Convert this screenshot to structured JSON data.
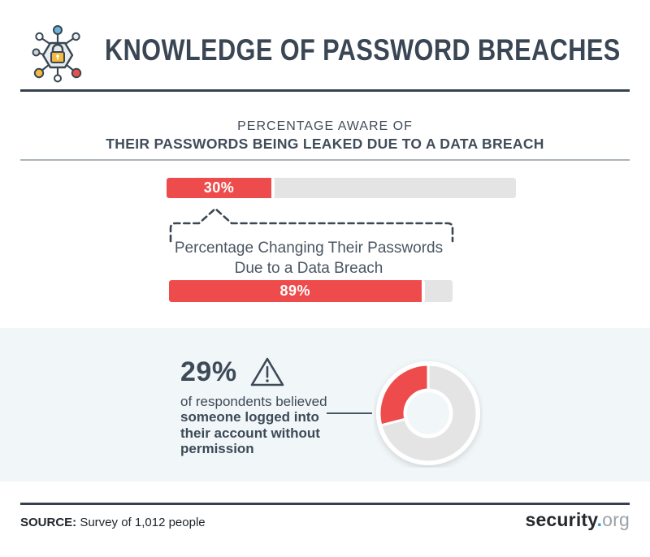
{
  "header": {
    "icon": "network-security-lock-icon",
    "title": "KNOWLEDGE OF PASSWORD BREACHES"
  },
  "awareness": {
    "heading_line1": "PERCENTAGE AWARE OF",
    "heading_line2": "THEIR PASSWORDS BEING LEAKED DUE TO A DATA BREACH"
  },
  "callout": {
    "line1": "Percentage Changing Their Passwords",
    "line2": "Due to a Data Breach"
  },
  "stat": {
    "value": "29%",
    "icon": "warning-triangle-icon",
    "intro": "of respondents believed",
    "bold_lines": [
      "someone logged into",
      "their account without",
      "permission"
    ]
  },
  "footer": {
    "source_label": "SOURCE:",
    "source_text": " Survey of 1,012 people",
    "logo_part1": "security",
    "logo_dot": ".",
    "logo_part2": "org"
  },
  "colors": {
    "accent_red": "#ee4c4c",
    "track_gray": "#e4e4e5",
    "navy": "#3a4654",
    "section_bg": "#f1f6f9",
    "logo_blue": "#2f9cd8"
  },
  "chart_data": [
    {
      "type": "bar",
      "id": "aware-bar",
      "title": "Percentage aware of their passwords being leaked due to a data breach",
      "label": "30%",
      "value": 30,
      "max": 100,
      "fill": "#ee4c4c",
      "track": "#e4e4e5",
      "orientation": "horizontal"
    },
    {
      "type": "bar",
      "id": "changed-bar",
      "title": "Percentage changing their passwords due to a data breach",
      "label": "89%",
      "value": 89,
      "max": 100,
      "fill": "#ee4c4c",
      "track": "#e4e4e5",
      "orientation": "horizontal"
    },
    {
      "type": "pie",
      "id": "unauthorized-donut",
      "donut": true,
      "start": "top",
      "direction": "counterclockwise",
      "series": [
        {
          "name": "Believed someone logged into their account without permission",
          "value": 29,
          "color": "#ee4c4c"
        },
        {
          "name": "Other respondents",
          "value": 71,
          "color": "#e4e4e5"
        }
      ]
    }
  ]
}
